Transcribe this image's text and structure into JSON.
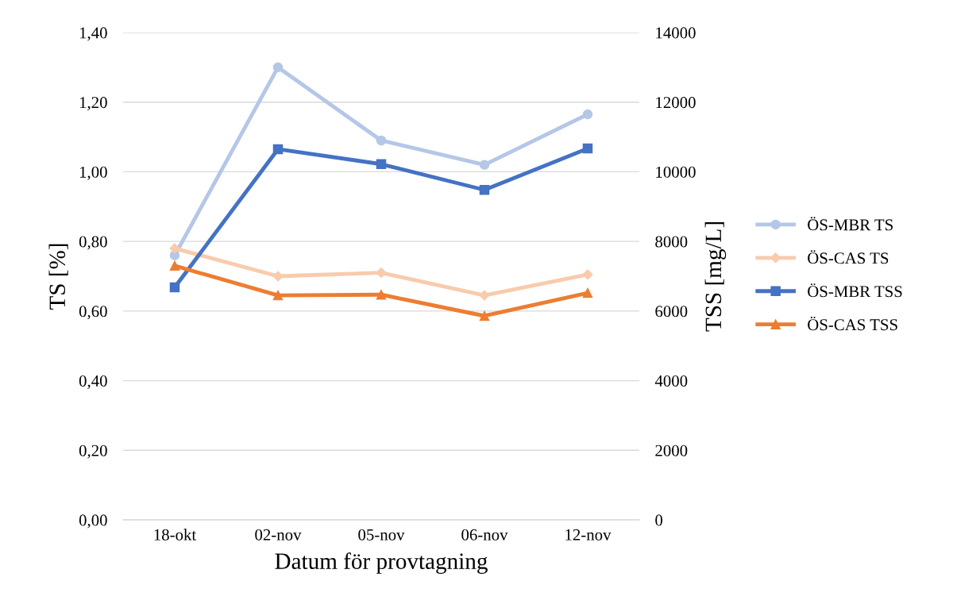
{
  "chart_data": {
    "type": "line",
    "xlabel": "Datum för provtagning",
    "ylabel": "TS [%]",
    "y2label": "TSS [mg/L]",
    "categories": [
      "18-okt",
      "02-nov",
      "05-nov",
      "06-nov",
      "12-nov"
    ],
    "series": [
      {
        "name": "ÖS-MBR TS",
        "color": "#b4c7e7",
        "marker": "circle",
        "values": [
          0.76,
          1.3,
          1.09,
          1.02,
          1.165
        ]
      },
      {
        "name": "ÖS-CAS TS",
        "color": "#f8cbad",
        "marker": "diamond",
        "values": [
          0.78,
          0.7,
          0.71,
          0.645,
          0.705
        ]
      },
      {
        "name": "ÖS-MBR TSS",
        "color": "#4472c4",
        "marker": "square",
        "axis": "y2",
        "values": [
          6680,
          10650,
          10220,
          9480,
          10670
        ]
      },
      {
        "name": "ÖS-CAS TSS",
        "color": "#ed7d31",
        "marker": "triangle",
        "axis": "y2",
        "values": [
          7300,
          6450,
          6470,
          5860,
          6520
        ]
      }
    ],
    "ylim": [
      0,
      1.4
    ],
    "yticks": [
      {
        "value": 0,
        "label": "0,00"
      },
      {
        "value": 0.2,
        "label": "0,20"
      },
      {
        "value": 0.4,
        "label": "0,40"
      },
      {
        "value": 0.6,
        "label": "0,60"
      },
      {
        "value": 0.8,
        "label": "0,80"
      },
      {
        "value": 1.0,
        "label": "1,00"
      },
      {
        "value": 1.2,
        "label": "1,20"
      },
      {
        "value": 1.4,
        "label": "1,40"
      }
    ],
    "y2lim": [
      0,
      14000
    ],
    "y2ticks": [
      0,
      2000,
      4000,
      6000,
      8000,
      10000,
      12000,
      14000
    ],
    "grid": "y",
    "legend": "right"
  }
}
